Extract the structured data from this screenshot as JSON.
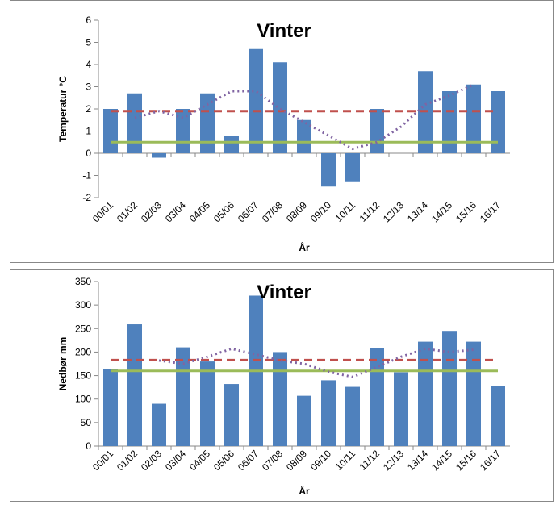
{
  "chart_data": [
    {
      "type": "bar",
      "title": "Vinter",
      "ylabel": "Temperatur °C",
      "xlabel": "År",
      "categories": [
        "00/01",
        "01/02",
        "02/03",
        "03/04",
        "04/05",
        "05/06",
        "06/07",
        "07/08",
        "08/09",
        "09/10",
        "10/11",
        "11/12",
        "12/13",
        "13/14",
        "14/15",
        "15/16",
        "16/17"
      ],
      "ylim": [
        -2,
        6
      ],
      "yticks": [
        -2,
        -1,
        0,
        1,
        2,
        3,
        4,
        5,
        6
      ],
      "series": [
        {
          "kind": "bar",
          "color": "#4f81bd",
          "values": [
            2.0,
            2.7,
            -0.2,
            2.0,
            2.7,
            0.8,
            4.7,
            4.1,
            1.5,
            -1.5,
            -1.3,
            2.0,
            0,
            3.7,
            2.8,
            3.1,
            2.8
          ]
        },
        {
          "kind": "line",
          "dash": "solid",
          "color": "#9bbb59",
          "values": [
            0.5,
            0.5,
            0.5,
            0.5,
            0.5,
            0.5,
            0.5,
            0.5,
            0.5,
            0.5,
            0.5,
            0.5,
            0.5,
            0.5,
            0.5,
            0.5,
            0.5
          ]
        },
        {
          "kind": "line",
          "dash": "dashed",
          "color": "#c0504d",
          "values": [
            1.9,
            1.9,
            1.9,
            1.9,
            1.9,
            1.9,
            1.9,
            1.9,
            1.9,
            1.9,
            1.9,
            1.9,
            1.9,
            1.9,
            1.9,
            1.9,
            1.9
          ]
        },
        {
          "kind": "line",
          "dash": "dotted",
          "color": "#8064a2",
          "values": [
            null,
            1.6,
            1.9,
            1.6,
            2.2,
            2.8,
            2.8,
            2.0,
            1.4,
            0.8,
            0.2,
            0.5,
            1.2,
            2.2,
            2.6,
            3.1,
            null
          ]
        }
      ]
    },
    {
      "type": "bar",
      "title": "Vinter",
      "ylabel": "Nedbør mm",
      "xlabel": "År",
      "categories": [
        "00/01",
        "01/02",
        "02/03",
        "03/04",
        "04/05",
        "05/06",
        "06/07",
        "07/08",
        "08/09",
        "09/10",
        "10/11",
        "11/12",
        "12/13",
        "13/14",
        "14/15",
        "15/16",
        "16/17"
      ],
      "ylim": [
        0,
        350
      ],
      "yticks": [
        0,
        50,
        100,
        150,
        200,
        250,
        300,
        350
      ],
      "series": [
        {
          "kind": "bar",
          "color": "#4f81bd",
          "values": [
            163,
            259,
            90,
            210,
            180,
            132,
            320,
            200,
            107,
            140,
            126,
            208,
            157,
            222,
            245,
            222,
            128
          ]
        },
        {
          "kind": "line",
          "dash": "solid",
          "color": "#9bbb59",
          "values": [
            160,
            160,
            160,
            160,
            160,
            160,
            160,
            160,
            160,
            160,
            160,
            160,
            160,
            160,
            160,
            160,
            160
          ]
        },
        {
          "kind": "line",
          "dash": "dashed",
          "color": "#c0504d",
          "values": [
            183,
            183,
            183,
            183,
            183,
            183,
            183,
            183,
            183,
            183,
            183,
            183,
            183,
            183,
            183,
            183,
            183
          ]
        },
        {
          "kind": "line",
          "dash": "dotted",
          "color": "#8064a2",
          "values": [
            null,
            null,
            182,
            175,
            190,
            207,
            195,
            182,
            175,
            158,
            147,
            168,
            190,
            207,
            200,
            205,
            null
          ]
        }
      ]
    }
  ]
}
